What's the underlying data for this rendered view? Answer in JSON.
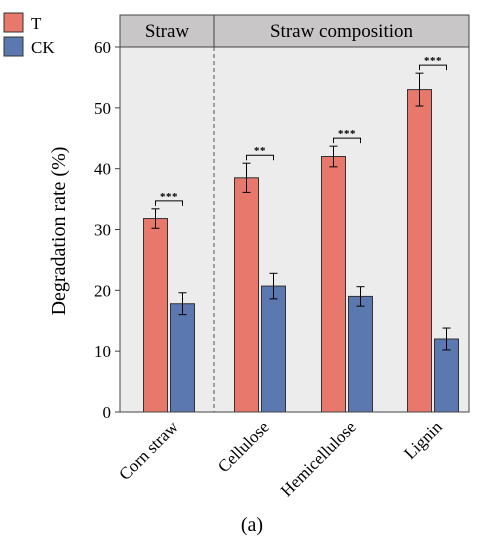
{
  "chart_data": {
    "type": "bar",
    "caption": "(a)",
    "ylabel": "Degradation rate (%)",
    "xlabel": "",
    "ylim": [
      0,
      60
    ],
    "yticks": [
      0,
      10,
      20,
      30,
      40,
      50,
      60
    ],
    "grid": false,
    "legend_position": "top-left",
    "panels": [
      {
        "label": "Straw",
        "categories": [
          "Corn straw"
        ]
      },
      {
        "label": "Straw composition",
        "categories": [
          "Cellulose",
          "Hemicellulose",
          "Lignin"
        ]
      }
    ],
    "categories": [
      "Corn straw",
      "Cellulose",
      "Hemicellulose",
      "Lignin"
    ],
    "series": [
      {
        "name": "T",
        "color": "#e8776c",
        "values": [
          31.8,
          38.5,
          42.0,
          53.0
        ],
        "errors": [
          1.6,
          2.4,
          1.7,
          2.7
        ]
      },
      {
        "name": "CK",
        "color": "#5b78b0",
        "values": [
          17.8,
          20.7,
          19.0,
          12.0
        ],
        "errors": [
          1.8,
          2.1,
          1.6,
          1.8
        ]
      }
    ],
    "significance": [
      "***",
      "**",
      "***",
      "***"
    ]
  }
}
